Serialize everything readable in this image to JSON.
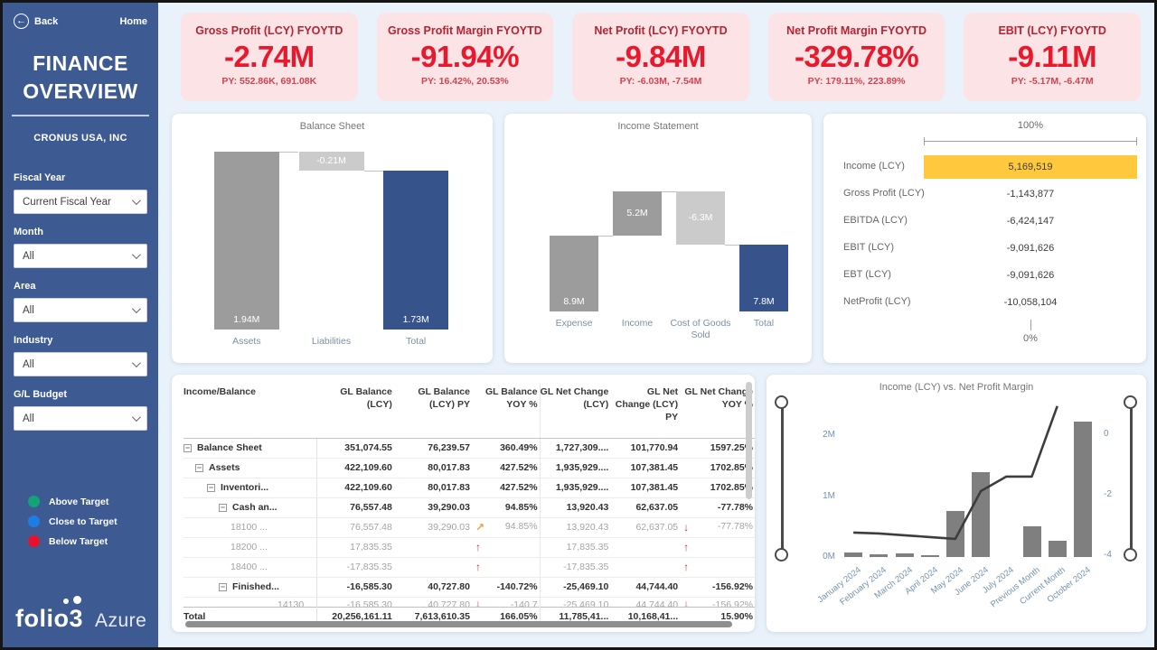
{
  "colors": {
    "sidebar_bg": "#3D5A93",
    "page_bg": "#E9F1FA",
    "kpi_card_bg": "#FCE4E6",
    "kpi_value": "#E9182C",
    "waterfall_increase": "#9C9C9C",
    "waterfall_decrease": "#CBCBCB",
    "waterfall_total": "#37538C",
    "funnel_highlight": "#FFC83D",
    "combo_bar": "#7F7F7F",
    "combo_line": "#3D3D3D",
    "arrow_red": "#C13438",
    "arrow_orange": "#E8A33D"
  },
  "sidebar": {
    "back_label": "Back",
    "home_label": "Home",
    "title": "FINANCE OVERVIEW",
    "company": "CRONUS USA, INC",
    "filters": [
      {
        "label": "Fiscal Year",
        "value": "Current Fiscal Year"
      },
      {
        "label": "Month",
        "value": "All"
      },
      {
        "label": "Area",
        "value": "All"
      },
      {
        "label": "Industry",
        "value": "All"
      },
      {
        "label": "G/L Budget",
        "value": "All"
      }
    ],
    "legend": [
      {
        "label": "Above Target",
        "color": "#13A377"
      },
      {
        "label": "Close to Target",
        "color": "#1F7CE4"
      },
      {
        "label": "Below Target",
        "color": "#E8112D"
      }
    ],
    "brand_logo": "folio3",
    "brand_product": "Azure"
  },
  "kpis": [
    {
      "title": "Gross Profit (LCY) FYOYTD",
      "value": "-2.74M",
      "py": "PY: 552.86K, 691.08K"
    },
    {
      "title": "Gross Profit Margin FYOYTD",
      "value": "-91.94%",
      "py": "PY: 16.42%, 20.53%"
    },
    {
      "title": "Net Profit (LCY) FYOYTD",
      "value": "-9.84M",
      "py": "PY: -6.03M, -7.54M"
    },
    {
      "title": "Net Profit Margin FYOYTD",
      "value": "-329.78%",
      "py": "PY: 179.11%, 223.89%"
    },
    {
      "title": "EBIT (LCY) FYOYTD",
      "value": "-9.11M",
      "py": "PY: -5.17M, -6.47M"
    }
  ],
  "table": {
    "columns": [
      "Income/Balance",
      "GL Balance (LCY)",
      "GL Balance (LCY) PY",
      "GL Balance YOY %",
      "GL Net Change (LCY)",
      "GL Net Change (LCY) PY",
      "GL Net Change YOY %"
    ],
    "rows": [
      {
        "name": "Balance Sheet",
        "indent": 0,
        "style": "group",
        "expand": true,
        "cells": [
          "351,074.55",
          "76,239.57",
          "360.49%",
          "1,727,309....",
          "101,770.94",
          "1597.25%"
        ]
      },
      {
        "name": "Assets",
        "indent": 1,
        "style": "group",
        "expand": true,
        "cells": [
          "422,109.60",
          "80,017.83",
          "427.52%",
          "1,935,929....",
          "107,381.45",
          "1702.85%"
        ]
      },
      {
        "name": "Inventori...",
        "indent": 2,
        "style": "group",
        "expand": true,
        "cells": [
          "422,109.60",
          "80,017.83",
          "427.52%",
          "1,935,929....",
          "107,381.45",
          "1702.85%"
        ]
      },
      {
        "name": "Cash an...",
        "indent": 3,
        "style": "group",
        "expand": true,
        "cells": [
          "76,557.48",
          "39,290.03",
          "94.85%",
          "13,920.43",
          "62,637.05",
          "-77.78%"
        ]
      },
      {
        "name": "18100 ...",
        "indent": 4,
        "style": "leaf",
        "cells": [
          "76,557.48",
          "39,290.03",
          {
            "t": "94.85%",
            "arrow": "up-right"
          },
          "13,920.43",
          "62,637.05",
          {
            "t": "-77.78%",
            "arrow": "down"
          }
        ]
      },
      {
        "name": "18200 ...",
        "indent": 4,
        "style": "leaf",
        "cells": [
          "17,835.35",
          "",
          {
            "t": "",
            "arrow": "up"
          },
          "17,835.35",
          "",
          {
            "t": "",
            "arrow": "up"
          }
        ]
      },
      {
        "name": "18400 ...",
        "indent": 4,
        "style": "leaf",
        "cells": [
          "-17,835.35",
          "",
          {
            "t": "",
            "arrow": "up"
          },
          "-17,835.35",
          "",
          {
            "t": "",
            "arrow": "up"
          }
        ]
      },
      {
        "name": "Finished...",
        "indent": 3,
        "style": "group",
        "expand": true,
        "cells": [
          "-16,585.30",
          "40,727.80",
          "-140.72%",
          "-25,469.10",
          "44,744.40",
          "-156.92%"
        ]
      },
      {
        "name": "14130 ...",
        "indent": 4,
        "style": "leaf",
        "clipped": true,
        "cells": [
          "-16,585.30",
          "40,727.80",
          {
            "t": "-140.7",
            "arrow": "down"
          },
          "-25,469.10",
          "44,744.40",
          {
            "t": "-156.92%",
            "arrow": "down"
          }
        ]
      }
    ],
    "total_row": {
      "name": "Total",
      "cells": [
        "20,256,161.11",
        "7,613,610.35",
        "166.05%",
        "11,785,41...",
        "10,168,41...",
        "15.90%"
      ]
    }
  },
  "chart_data": [
    {
      "id": "balance-sheet",
      "type": "waterfall",
      "title": "Balance Sheet",
      "categories": [
        "Assets",
        "Liabilities",
        "Total"
      ],
      "values": [
        1.94,
        -0.21,
        1.73
      ],
      "labels": [
        "1.94M",
        "-0.21M",
        "1.73M"
      ],
      "total_index": 2,
      "unit": "M",
      "ylim": [
        0,
        2
      ]
    },
    {
      "id": "income-statement",
      "type": "waterfall",
      "title": "Income Statement",
      "categories": [
        "Expense",
        "Income",
        "Cost of Goods Sold",
        "Total"
      ],
      "values": [
        8.9,
        5.2,
        -6.3,
        7.8
      ],
      "labels": [
        "8.9M",
        "5.2M",
        "-6.3M",
        "7.8M"
      ],
      "total_index": 3,
      "unit": "M",
      "ylim": [
        0,
        19.4
      ]
    },
    {
      "id": "profit-funnel",
      "type": "funnel",
      "top_label": "100%",
      "bottom_label": "0%",
      "categories": [
        "Income (LCY)",
        "Gross Profit (LCY)",
        "EBITDA (LCY)",
        "EBIT (LCY)",
        "EBT (LCY)",
        "NetProfit (LCY)"
      ],
      "values": [
        "5,169,519",
        "-1,143,877",
        "-6,424,147",
        "-9,091,626",
        "-9,091,626",
        "-10,058,104"
      ],
      "highlight_index": 0
    },
    {
      "id": "income-vs-margin",
      "type": "combo",
      "title": "Income (LCY) vs. Net Profit Margin",
      "categories": [
        "January 2024",
        "February 2024",
        "March 2024",
        "April 2024",
        "May 2024",
        "June 2024",
        "July 2024",
        "Previous Month",
        "Current Month",
        "October 2024"
      ],
      "series": [
        {
          "name": "Income (LCY)",
          "type": "bar",
          "unit": "M",
          "values": [
            0.07,
            0.05,
            0.06,
            0.03,
            0.76,
            1.4,
            0,
            0.51,
            0.27,
            2.22
          ]
        },
        {
          "name": "Net Profit Margin",
          "type": "line",
          "values": [
            -3.25,
            -3.28,
            -3.34,
            -3.4,
            -3.46,
            -1.88,
            -1.4,
            -1.4,
            0.93,
            null
          ]
        }
      ],
      "left_axis": {
        "ticks": [
          {
            "v": 2,
            "label": "2M"
          },
          {
            "v": 1,
            "label": "1M"
          },
          {
            "v": 0,
            "label": "0M"
          }
        ],
        "range": [
          0,
          2.55
        ]
      },
      "right_axis": {
        "ticks": [
          {
            "v": 0,
            "label": "0"
          },
          {
            "v": -2,
            "label": "-2"
          },
          {
            "v": -4,
            "label": "-4"
          }
        ],
        "range": [
          -4.05,
          1.07
        ]
      }
    }
  ]
}
